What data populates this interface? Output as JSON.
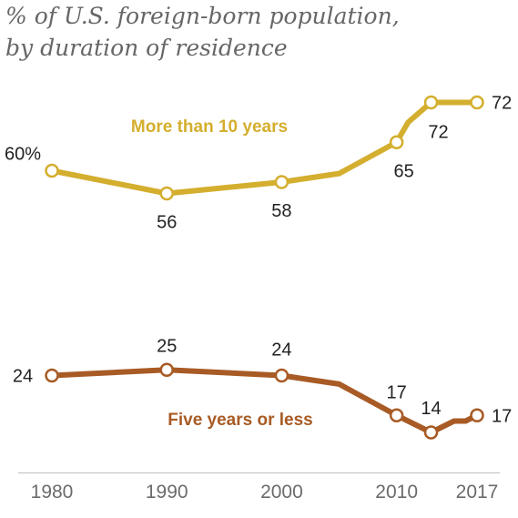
{
  "chart_data": {
    "type": "line",
    "title_line1": "% of U.S. foreign-born population,",
    "title_line2": "by duration of residence",
    "x_ticks": [
      "1980",
      "1990",
      "2000",
      "2010",
      "2017"
    ],
    "series": [
      {
        "name": "More than 10 years",
        "color": "#D4AE2E",
        "points": [
          {
            "x": 1980,
            "y": 60,
            "label": "60%",
            "marker": true
          },
          {
            "x": 1990,
            "y": 56,
            "label": "56",
            "marker": true
          },
          {
            "x": 2000,
            "y": 58,
            "label": "58",
            "marker": true
          },
          {
            "x": 2005,
            "y": 59.5,
            "label": "",
            "marker": false
          },
          {
            "x": 2010,
            "y": 65,
            "label": "65",
            "marker": true
          },
          {
            "x": 2011,
            "y": 68.5,
            "label": "",
            "marker": false
          },
          {
            "x": 2013,
            "y": 72,
            "label": "72",
            "marker": true
          },
          {
            "x": 2016,
            "y": 72,
            "label": "",
            "marker": false
          },
          {
            "x": 2017,
            "y": 72,
            "label": "72",
            "marker": true
          }
        ]
      },
      {
        "name": "Five years or less",
        "color": "#A85B25",
        "points": [
          {
            "x": 1980,
            "y": 24,
            "label": "24",
            "marker": true
          },
          {
            "x": 1990,
            "y": 25,
            "label": "25",
            "marker": true
          },
          {
            "x": 2000,
            "y": 24,
            "label": "24",
            "marker": true
          },
          {
            "x": 2005,
            "y": 22.5,
            "label": "",
            "marker": false
          },
          {
            "x": 2010,
            "y": 17,
            "label": "17",
            "marker": true
          },
          {
            "x": 2013,
            "y": 14,
            "label": "14",
            "marker": true
          },
          {
            "x": 2015,
            "y": 16,
            "label": "",
            "marker": false
          },
          {
            "x": 2016,
            "y": 16,
            "label": "",
            "marker": false
          },
          {
            "x": 2017,
            "y": 17,
            "label": "17",
            "marker": true
          }
        ]
      }
    ]
  }
}
